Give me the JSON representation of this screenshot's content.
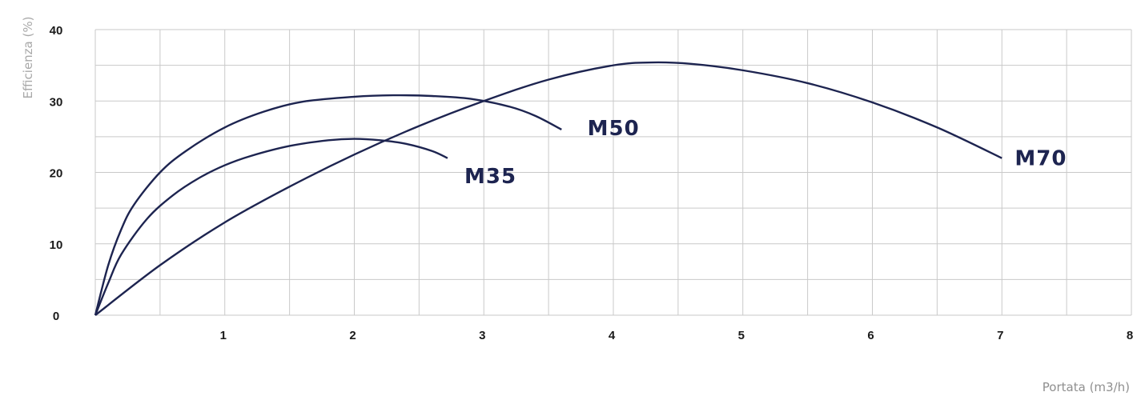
{
  "chart_data": {
    "type": "line",
    "ylabel": "Efficienza (%)",
    "xlabel": "Portata (m3/h)",
    "xlim": [
      0,
      8
    ],
    "ylim": [
      0,
      40
    ],
    "x_ticks": [
      "1",
      "2",
      "3",
      "4",
      "5",
      "6",
      "7",
      "8"
    ],
    "y_ticks": [
      "0",
      "10",
      "20",
      "30",
      "40"
    ],
    "grid": true,
    "color": "#1d2450",
    "series": [
      {
        "name": "M35",
        "x": [
          0,
          0.1,
          0.2,
          0.4,
          0.6,
          0.8,
          1.0,
          1.2,
          1.5,
          1.8,
          2.0,
          2.2,
          2.4,
          2.6,
          2.72
        ],
        "y": [
          0,
          4.5,
          8.5,
          13.5,
          16.8,
          19.2,
          21.0,
          22.3,
          23.7,
          24.5,
          24.7,
          24.5,
          24.0,
          23.0,
          22.0
        ]
      },
      {
        "name": "M50",
        "x": [
          0,
          0.1,
          0.2,
          0.3,
          0.5,
          0.7,
          1.0,
          1.3,
          1.6,
          2.0,
          2.3,
          2.6,
          2.9,
          3.2,
          3.4,
          3.6
        ],
        "y": [
          0,
          7.0,
          12.0,
          15.5,
          20.0,
          23.0,
          26.3,
          28.5,
          29.9,
          30.6,
          30.8,
          30.7,
          30.3,
          29.2,
          27.9,
          26.0
        ]
      },
      {
        "name": "M70",
        "x": [
          0,
          0.5,
          1.0,
          1.5,
          2.0,
          2.5,
          3.0,
          3.5,
          4.0,
          4.3,
          4.6,
          5.0,
          5.5,
          6.0,
          6.5,
          7.0
        ],
        "y": [
          0,
          7.0,
          13.0,
          18.0,
          22.5,
          26.5,
          30.0,
          33.0,
          35.0,
          35.4,
          35.2,
          34.3,
          32.5,
          29.8,
          26.3,
          22.0
        ]
      }
    ],
    "series_label_anchor_x": [
      2.85,
      3.8,
      7.1
    ],
    "series_label_anchor_y": [
      18.5,
      25.2,
      21.0
    ]
  }
}
